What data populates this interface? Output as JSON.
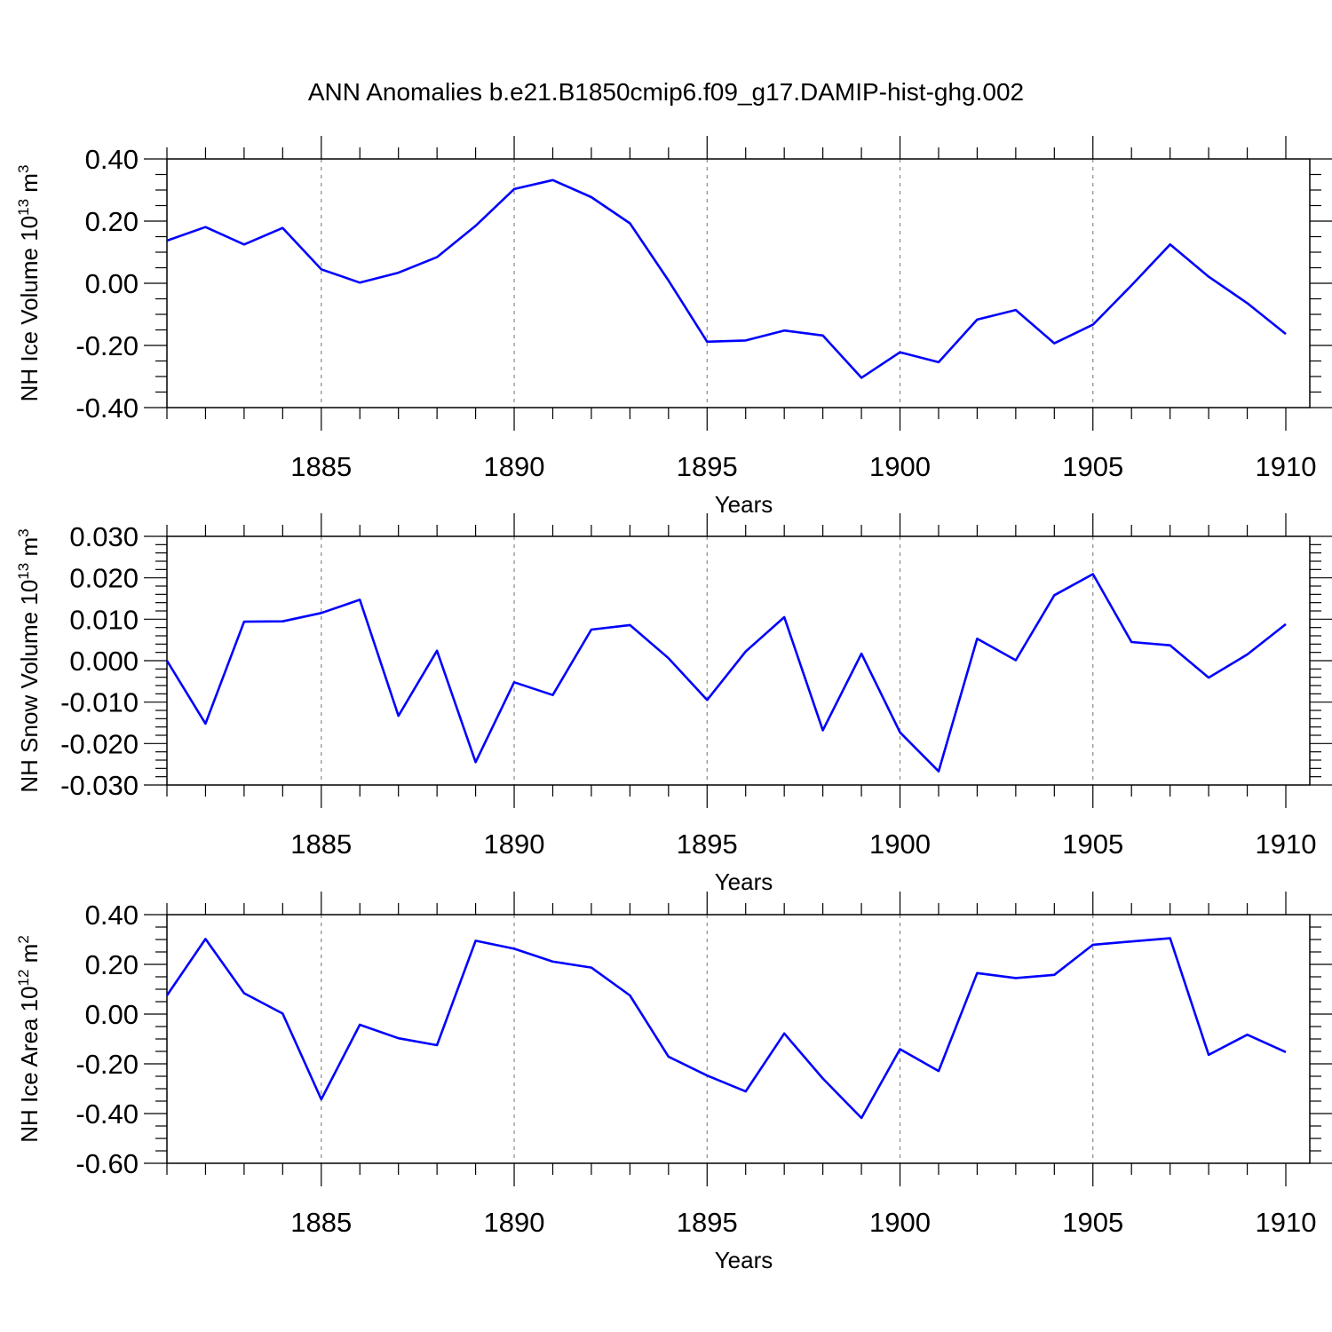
{
  "title": "ANN Anomalies b.e21.B1850cmip6.f09_g17.DAMIP-hist-ghg.002",
  "colors": {
    "series": "#0000ff",
    "axis": "#000000",
    "grid": "#8a8a8a"
  },
  "chart_data": [
    {
      "type": "line",
      "ylabel": {
        "main": "NH Ice Volume 10",
        "sup_power": "13",
        "unit": "m",
        "sup_unit": "3"
      },
      "xlabel": "Years",
      "xlim": [
        1881,
        1910
      ],
      "ylim": [
        -0.4,
        0.4
      ],
      "yticks": [
        -0.4,
        -0.2,
        0.0,
        0.2,
        0.4
      ],
      "ytick_labels": [
        "-0.40",
        "-0.20",
        "0.00",
        "0.20",
        "0.40"
      ],
      "yminor": 0.05,
      "xticks": [
        1885,
        1890,
        1895,
        1900,
        1905,
        1910
      ],
      "xtick_labels": [
        "1885",
        "1890",
        "1895",
        "1900",
        "1905",
        "1910"
      ],
      "grid": "vertical dashed at major x ticks",
      "x": [
        1881,
        1882,
        1883,
        1884,
        1885,
        1886,
        1887,
        1888,
        1889,
        1890,
        1891,
        1892,
        1893,
        1894,
        1895,
        1896,
        1897,
        1898,
        1899,
        1900,
        1901,
        1902,
        1903,
        1904,
        1905,
        1906,
        1907,
        1908,
        1909,
        1910
      ],
      "values": [
        0.137,
        0.181,
        0.125,
        0.178,
        0.045,
        0.002,
        0.034,
        0.084,
        0.185,
        0.303,
        0.332,
        0.277,
        0.193,
        0.009,
        -0.188,
        -0.184,
        -0.152,
        -0.168,
        -0.304,
        -0.222,
        -0.254,
        -0.117,
        -0.086,
        -0.193,
        -0.133,
        -0.007,
        0.125,
        0.021,
        -0.064,
        -0.163
      ]
    },
    {
      "type": "line",
      "ylabel": {
        "main": "NH Snow Volume 10",
        "sup_power": "13",
        "unit": "m",
        "sup_unit": "3"
      },
      "xlabel": "Years",
      "xlim": [
        1881,
        1910
      ],
      "ylim": [
        -0.03,
        0.03
      ],
      "yticks": [
        -0.03,
        -0.02,
        -0.01,
        0.0,
        0.01,
        0.02,
        0.03
      ],
      "ytick_labels": [
        "-0.030",
        "-0.020",
        "-0.010",
        "0.000",
        "0.010",
        "0.020",
        "0.030"
      ],
      "yminor": 0.002,
      "xticks": [
        1885,
        1890,
        1895,
        1900,
        1905,
        1910
      ],
      "xtick_labels": [
        "1885",
        "1890",
        "1895",
        "1900",
        "1905",
        "1910"
      ],
      "grid": "vertical dashed at major x ticks",
      "x": [
        1881,
        1882,
        1883,
        1884,
        1885,
        1886,
        1887,
        1888,
        1889,
        1890,
        1891,
        1892,
        1893,
        1894,
        1895,
        1896,
        1897,
        1898,
        1899,
        1900,
        1901,
        1902,
        1903,
        1904,
        1905,
        1906,
        1907,
        1908,
        1909,
        1910
      ],
      "values": [
        0.0,
        -0.0152,
        0.0094,
        0.0095,
        0.0115,
        0.0147,
        -0.0133,
        0.0024,
        -0.0245,
        -0.0052,
        -0.0083,
        0.0075,
        0.0086,
        0.0006,
        -0.0095,
        0.0022,
        0.0105,
        -0.0168,
        0.0017,
        -0.0173,
        -0.0267,
        0.0053,
        0.0001,
        0.0158,
        0.0209,
        0.0045,
        0.0037,
        -0.0041,
        0.0015,
        0.0088
      ]
    },
    {
      "type": "line",
      "ylabel": {
        "main": "NH Ice Area 10",
        "sup_power": "12",
        "unit": "m",
        "sup_unit": "2"
      },
      "xlabel": "Years",
      "xlim": [
        1881,
        1910
      ],
      "ylim": [
        -0.6,
        0.4
      ],
      "yticks": [
        -0.6,
        -0.4,
        -0.2,
        0.0,
        0.2,
        0.4
      ],
      "ytick_labels": [
        "-0.60",
        "-0.40",
        "-0.20",
        "0.00",
        "0.20",
        "0.40"
      ],
      "yminor": 0.05,
      "xticks": [
        1885,
        1890,
        1895,
        1900,
        1905,
        1910
      ],
      "xtick_labels": [
        "1885",
        "1890",
        "1895",
        "1900",
        "1905",
        "1910"
      ],
      "grid": "vertical dashed at major x ticks",
      "x": [
        1881,
        1882,
        1883,
        1884,
        1885,
        1886,
        1887,
        1888,
        1889,
        1890,
        1891,
        1892,
        1893,
        1894,
        1895,
        1896,
        1897,
        1898,
        1899,
        1900,
        1901,
        1902,
        1903,
        1904,
        1905,
        1906,
        1907,
        1908,
        1909,
        1910
      ],
      "values": [
        0.075,
        0.302,
        0.084,
        0.002,
        -0.343,
        -0.043,
        -0.097,
        -0.125,
        0.295,
        0.263,
        0.211,
        0.187,
        0.075,
        -0.171,
        -0.247,
        -0.311,
        -0.078,
        -0.259,
        -0.418,
        -0.141,
        -0.229,
        0.165,
        0.145,
        0.158,
        0.279,
        0.292,
        0.305,
        -0.164,
        -0.083,
        -0.153
      ]
    }
  ]
}
